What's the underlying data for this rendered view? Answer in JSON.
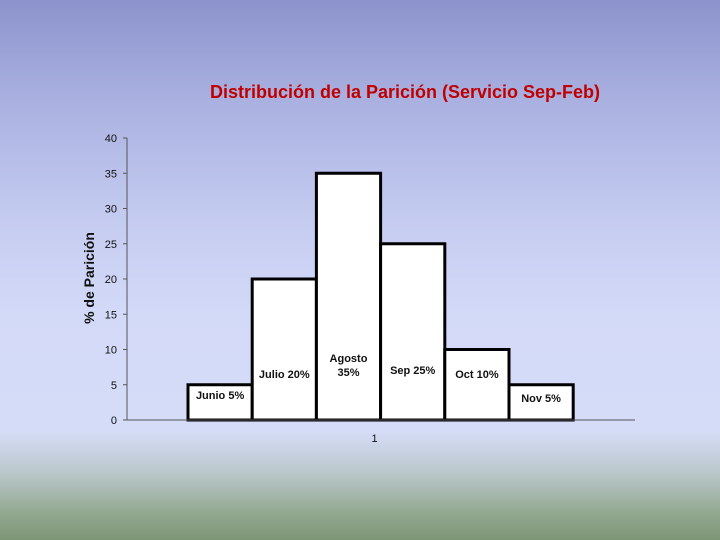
{
  "chart_data": {
    "type": "bar",
    "title": "Distribución de la Parición (Servicio Sep-Feb)",
    "ylabel": "% de Parición",
    "xlabel": "",
    "x_tick_label": "1",
    "ylim": [
      0,
      40
    ],
    "yticks": [
      0,
      5,
      10,
      15,
      20,
      25,
      30,
      35,
      40
    ],
    "categories": [
      "Junio",
      "Julio",
      "Agosto",
      "Sep",
      "Oct",
      "Nov"
    ],
    "values": [
      5,
      20,
      35,
      25,
      10,
      5
    ],
    "data_labels": [
      [
        "Junio 5%"
      ],
      [
        "Julio 20%"
      ],
      [
        "Agosto",
        "35%"
      ],
      [
        "Sep 25%"
      ],
      [
        "Oct 10%"
      ],
      [
        "Nov 5%"
      ]
    ],
    "grid": false,
    "legend": "none",
    "colors": {
      "title": "#c00000",
      "bar_fill": "#ffffff",
      "bar_stroke": "#000000"
    }
  }
}
